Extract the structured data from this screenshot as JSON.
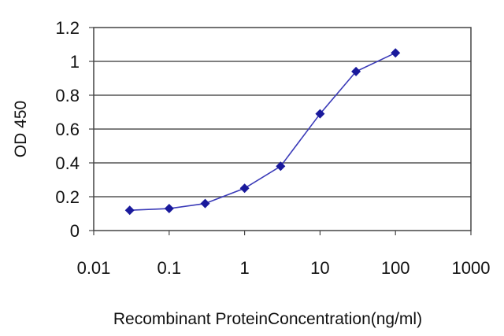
{
  "chart_data": {
    "type": "line",
    "title": "",
    "xlabel": "Recombinant ProteinConcentration(ng/ml)",
    "ylabel": "OD 450",
    "x_scale": "log",
    "xlim": [
      0.01,
      1000
    ],
    "ylim": [
      0,
      1.2
    ],
    "x_ticks": [
      "0.01",
      "0.1",
      "1",
      "10",
      "100",
      "1000"
    ],
    "y_ticks": [
      "0",
      "0.2",
      "0.4",
      "0.6",
      "0.8",
      "1",
      "1.2"
    ],
    "grid": "horizontal",
    "series": [
      {
        "x": [
          0.03,
          0.1,
          0.3,
          1,
          3,
          10,
          30,
          100
        ],
        "y": [
          0.12,
          0.13,
          0.16,
          0.25,
          0.38,
          0.69,
          0.94,
          1.05
        ],
        "marker": "diamond",
        "color": "#1a1a9c"
      }
    ]
  }
}
